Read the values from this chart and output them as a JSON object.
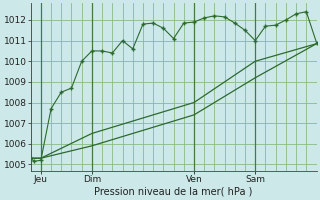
{
  "background_color": "#cce8e8",
  "grid_color": "#88bb88",
  "line_color": "#2d6a2d",
  "ylim": [
    1004.7,
    1012.8
  ],
  "xlim": [
    0,
    84
  ],
  "yticks": [
    1005,
    1006,
    1007,
    1008,
    1009,
    1010,
    1011,
    1012
  ],
  "xtick_positions": [
    3,
    18,
    48,
    66
  ],
  "xtick_labels": [
    "Jeu",
    "Dim",
    "Ven",
    "Sam"
  ],
  "vlines": [
    3,
    18,
    48,
    66
  ],
  "xlabel": "Pression niveau de la mer( hPa )",
  "line1_x": [
    0,
    1,
    3,
    6,
    9,
    12,
    15,
    18,
    21,
    24,
    27,
    30,
    33,
    36,
    39,
    42,
    45,
    48,
    51,
    54,
    57,
    60,
    63,
    66,
    69,
    72,
    75,
    78,
    81,
    84
  ],
  "line1_y": [
    1005.3,
    1005.15,
    1005.2,
    1007.7,
    1008.5,
    1008.7,
    1010.0,
    1010.5,
    1010.5,
    1010.4,
    1011.0,
    1010.6,
    1011.8,
    1011.85,
    1011.6,
    1011.1,
    1011.85,
    1011.9,
    1012.1,
    1012.2,
    1012.15,
    1011.85,
    1011.5,
    1011.0,
    1011.7,
    1011.75,
    1012.0,
    1012.3,
    1012.4,
    1010.9
  ],
  "line2_x": [
    0,
    3,
    18,
    48,
    66,
    84
  ],
  "line2_y": [
    1005.3,
    1005.3,
    1006.5,
    1008.0,
    1010.0,
    1010.85
  ],
  "line3_x": [
    0,
    3,
    18,
    48,
    66,
    84
  ],
  "line3_y": [
    1005.3,
    1005.3,
    1005.9,
    1007.4,
    1009.2,
    1010.85
  ]
}
